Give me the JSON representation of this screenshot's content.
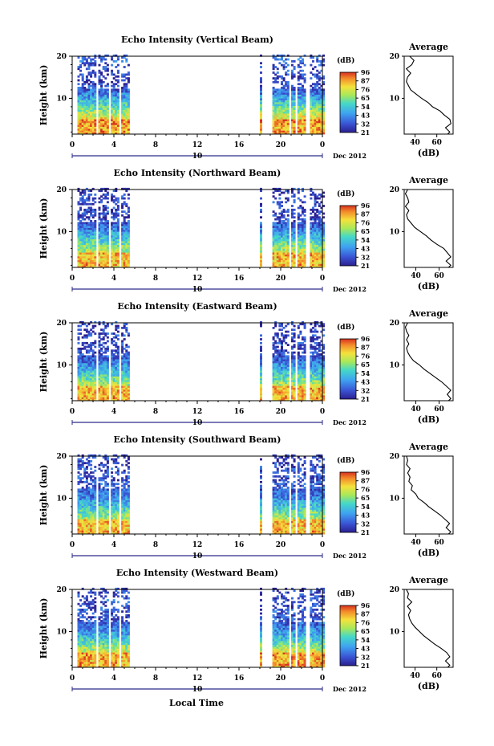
{
  "chart_data": {
    "type": "heatmap",
    "shared": {
      "x_ticks": [
        "0",
        "4",
        "8",
        "12",
        "16",
        "20",
        "0"
      ],
      "x_range_hours": [
        0,
        24
      ],
      "date_marker": "10",
      "date_suffix": "Dec 2012",
      "xlabel": "Local Time",
      "colorbar_unit": "(dB)",
      "colorbar_ticks": [
        "96",
        "87",
        "76",
        "65",
        "54",
        "43",
        "32",
        "21"
      ],
      "colorbar_range": [
        21,
        96
      ],
      "average_title": "Average",
      "average_xlabel": "(dB)",
      "data_segments_hours": [
        [
          0.5,
          5.5
        ],
        [
          18.0,
          24.0
        ]
      ]
    },
    "panels": [
      {
        "title": "Echo Intensity (Vertical Beam)",
        "ylabel": "Height (km)",
        "y_ticks": [
          "20",
          "10"
        ],
        "ylim": [
          1.5,
          20
        ],
        "avg_x_ticks": [
          "40",
          "60"
        ],
        "avg_xlim": [
          30,
          75
        ],
        "avg_profile": [
          [
            70,
            1.5
          ],
          [
            72,
            2
          ],
          [
            68,
            3
          ],
          [
            73,
            4
          ],
          [
            72,
            5
          ],
          [
            67,
            6
          ],
          [
            63,
            7
          ],
          [
            56,
            8
          ],
          [
            52,
            9
          ],
          [
            46,
            10
          ],
          [
            41,
            11
          ],
          [
            36,
            12
          ],
          [
            34,
            13
          ],
          [
            32,
            14
          ],
          [
            33,
            15
          ],
          [
            36,
            16
          ],
          [
            32,
            17
          ],
          [
            37,
            18
          ],
          [
            39,
            19
          ],
          [
            35,
            20
          ]
        ]
      },
      {
        "title": "Echo Intensity (Northward Beam)",
        "ylabel": "Height (km)",
        "y_ticks": [
          "20",
          "10"
        ],
        "ylim": [
          1.5,
          20
        ],
        "avg_x_ticks": [
          "40",
          "60"
        ],
        "avg_xlim": [
          30,
          72
        ],
        "avg_profile": [
          [
            68,
            1.5
          ],
          [
            70,
            2
          ],
          [
            66,
            3
          ],
          [
            70,
            4
          ],
          [
            67,
            5
          ],
          [
            64,
            6
          ],
          [
            58,
            7
          ],
          [
            53,
            8
          ],
          [
            49,
            9
          ],
          [
            44,
            10
          ],
          [
            39,
            11
          ],
          [
            36,
            12
          ],
          [
            33,
            13
          ],
          [
            32,
            14
          ],
          [
            34,
            15
          ],
          [
            31,
            16
          ],
          [
            34,
            17
          ],
          [
            33,
            18
          ],
          [
            31,
            19
          ],
          [
            33,
            20
          ]
        ]
      },
      {
        "title": "Echo Intensity (Eastward Beam)",
        "ylabel": "Height (km)",
        "y_ticks": [
          "20",
          "10"
        ],
        "ylim": [
          1.5,
          20
        ],
        "avg_x_ticks": [
          "40",
          "60"
        ],
        "avg_xlim": [
          30,
          72
        ],
        "avg_profile": [
          [
            68,
            1.5
          ],
          [
            70,
            2
          ],
          [
            67,
            3
          ],
          [
            70,
            4
          ],
          [
            66,
            5
          ],
          [
            62,
            6
          ],
          [
            57,
            7
          ],
          [
            52,
            8
          ],
          [
            47,
            9
          ],
          [
            43,
            10
          ],
          [
            38,
            11
          ],
          [
            35,
            12
          ],
          [
            33,
            13
          ],
          [
            32,
            14
          ],
          [
            34,
            15
          ],
          [
            32,
            16
          ],
          [
            34,
            17
          ],
          [
            32,
            18
          ],
          [
            31,
            19
          ],
          [
            33,
            20
          ]
        ]
      },
      {
        "title": "Echo Intensity (Southward Beam)",
        "ylabel": "Height (km)",
        "y_ticks": [
          "20",
          "10"
        ],
        "ylim": [
          1.5,
          20
        ],
        "avg_x_ticks": [
          "40",
          "60"
        ],
        "avg_xlim": [
          30,
          72
        ],
        "avg_profile": [
          [
            68,
            1.5
          ],
          [
            70,
            2
          ],
          [
            66,
            3
          ],
          [
            69,
            4
          ],
          [
            65,
            5
          ],
          [
            61,
            6
          ],
          [
            56,
            7
          ],
          [
            51,
            8
          ],
          [
            47,
            9
          ],
          [
            42,
            10
          ],
          [
            40,
            11
          ],
          [
            36,
            12
          ],
          [
            37,
            13
          ],
          [
            34,
            14
          ],
          [
            35,
            15
          ],
          [
            33,
            16
          ],
          [
            35,
            17
          ],
          [
            32,
            18
          ],
          [
            33,
            19
          ],
          [
            32,
            20
          ]
        ]
      },
      {
        "title": "Echo Intensity (Westward Beam)",
        "ylabel": "Height (km)",
        "y_ticks": [
          "20",
          "10"
        ],
        "ylim": [
          1.5,
          20
        ],
        "avg_x_ticks": [
          "40",
          "60"
        ],
        "avg_xlim": [
          30,
          75
        ],
        "avg_profile": [
          [
            70,
            1.5
          ],
          [
            72,
            2
          ],
          [
            68,
            3
          ],
          [
            72,
            4
          ],
          [
            69,
            5
          ],
          [
            64,
            6
          ],
          [
            58,
            7
          ],
          [
            53,
            8
          ],
          [
            48,
            9
          ],
          [
            44,
            10
          ],
          [
            40,
            11
          ],
          [
            37,
            12
          ],
          [
            35,
            13
          ],
          [
            34,
            14
          ],
          [
            36,
            15
          ],
          [
            33,
            16
          ],
          [
            37,
            17
          ],
          [
            33,
            18
          ],
          [
            34,
            19
          ],
          [
            32,
            20
          ]
        ]
      }
    ]
  }
}
